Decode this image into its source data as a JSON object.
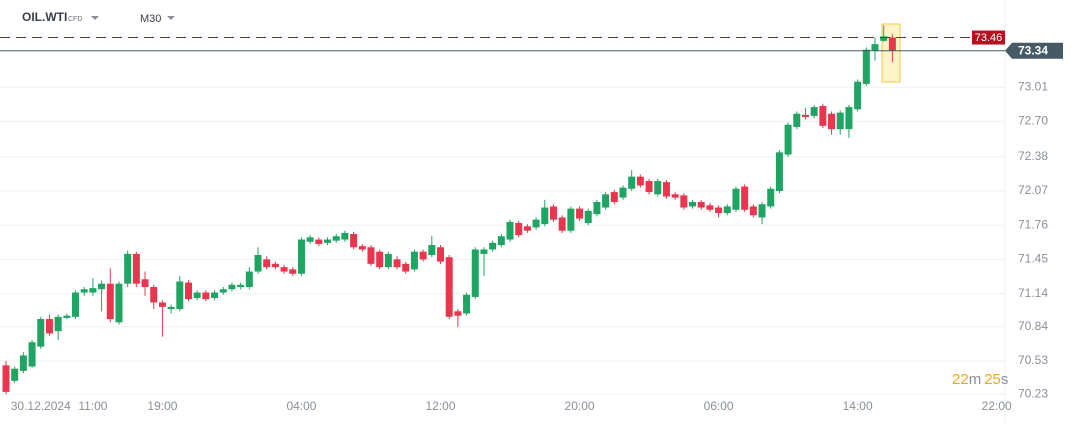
{
  "header": {
    "symbol": "OIL.WTI",
    "symbol_tag": "CFD",
    "timeframe": "M30"
  },
  "countdown": {
    "minutes": "22",
    "minutes_unit": "m",
    "seconds": "25",
    "seconds_unit": "s"
  },
  "chart_data": {
    "type": "candlestick",
    "up_color": "#1fa463",
    "down_color": "#e8364f",
    "grid": true,
    "ylim": [
      70.19,
      73.8
    ],
    "yticks": [
      73.01,
      {
        "value": 72.7,
        "label": "72.70"
      },
      72.38,
      72.07,
      71.76,
      71.45,
      71.14,
      70.84,
      70.53,
      70.23
    ],
    "price_lines": [
      {
        "value": 73.46,
        "color": "#b3121f",
        "dashed": true
      },
      {
        "value": 73.34,
        "color": "#455a64",
        "dashed": false
      }
    ],
    "categories": [
      null,
      null,
      null,
      null,
      "30.12.2024",
      null,
      null,
      null,
      null,
      null,
      "11:00",
      null,
      null,
      null,
      null,
      null,
      null,
      null,
      "19:00",
      null,
      null,
      null,
      null,
      null,
      null,
      null,
      null,
      null,
      null,
      null,
      null,
      null,
      null,
      null,
      "04:00",
      null,
      null,
      null,
      null,
      null,
      null,
      null,
      null,
      null,
      null,
      null,
      null,
      null,
      null,
      null,
      "12:00",
      null,
      null,
      null,
      null,
      null,
      null,
      null,
      null,
      null,
      null,
      null,
      null,
      null,
      null,
      null,
      "20:00",
      null,
      null,
      null,
      null,
      null,
      null,
      null,
      null,
      null,
      null,
      null,
      null,
      null,
      null,
      null,
      "06:00",
      null,
      null,
      null,
      null,
      null,
      null,
      null,
      null,
      null,
      null,
      null,
      null,
      null,
      null,
      null,
      "14:00",
      null,
      null,
      null,
      null,
      null,
      null,
      null,
      null,
      null,
      null,
      null,
      null,
      null,
      null,
      null,
      "22:00",
      null
    ],
    "open": [
      70.49,
      70.35,
      70.44,
      70.48,
      70.66,
      70.91,
      70.8,
      70.92,
      70.93,
      71.15,
      71.15,
      71.18,
      71.23,
      70.88,
      71.23,
      71.5,
      71.27,
      71.2,
      71.06,
      71.0,
      71.0,
      71.24,
      71.1,
      71.15,
      71.1,
      71.15,
      71.18,
      71.2,
      71.2,
      71.34,
      71.45,
      71.41,
      71.38,
      71.36,
      71.32,
      71.61,
      71.63,
      71.6,
      71.62,
      71.63,
      71.68,
      71.57,
      71.56,
      71.52,
      71.38,
      71.45,
      71.41,
      71.36,
      71.52,
      71.49,
      71.56,
      71.47,
      70.98,
      70.96,
      71.11,
      71.5,
      71.54,
      71.58,
      71.63,
      71.78,
      71.75,
      71.74,
      71.77,
      71.93,
      71.83,
      71.71,
      71.91,
      71.78,
      71.86,
      71.92,
      72.06,
      72.01,
      72.09,
      72.2,
      72.16,
      72.04,
      72.15,
      72.04,
      72.03,
      71.93,
      71.97,
      71.94,
      71.92,
      71.87,
      71.9,
      72.11,
      71.93,
      71.83,
      71.93,
      72.07,
      72.4,
      72.65,
      72.76,
      72.75,
      72.84,
      72.77,
      72.63,
      72.63,
      72.81,
      73.04,
      73.34,
      73.43,
      73.46,
      null,
      null,
      null,
      null,
      null,
      null,
      null,
      null,
      null,
      null,
      null,
      null,
      null
    ],
    "high": [
      70.53,
      70.48,
      70.61,
      70.72,
      70.93,
      70.95,
      70.95,
      70.96,
      71.17,
      71.2,
      71.28,
      71.26,
      71.37,
      71.25,
      71.53,
      71.52,
      71.34,
      71.22,
      71.08,
      71.04,
      71.3,
      71.26,
      71.17,
      71.17,
      71.17,
      71.2,
      71.24,
      71.24,
      71.38,
      71.56,
      71.48,
      71.43,
      71.4,
      71.38,
      71.65,
      71.67,
      71.65,
      71.65,
      71.68,
      71.71,
      71.7,
      71.59,
      71.58,
      71.54,
      71.52,
      71.48,
      71.43,
      71.54,
      71.54,
      71.66,
      71.58,
      71.49,
      71.0,
      71.15,
      71.56,
      71.56,
      71.62,
      71.68,
      71.81,
      71.8,
      71.77,
      71.83,
      71.99,
      71.95,
      71.85,
      71.93,
      71.93,
      71.91,
      71.99,
      72.06,
      72.08,
      72.12,
      72.26,
      72.22,
      72.18,
      72.18,
      72.17,
      72.06,
      72.05,
      71.99,
      71.99,
      71.96,
      71.94,
      71.95,
      72.11,
      72.13,
      71.95,
      71.97,
      72.11,
      72.44,
      72.69,
      72.79,
      72.82,
      72.85,
      72.86,
      72.79,
      72.8,
      72.85,
      73.08,
      73.37,
      73.46,
      73.57,
      73.49,
      null,
      null,
      null,
      null,
      null,
      null,
      null,
      null,
      null,
      null,
      null,
      null,
      null
    ],
    "low": [
      70.23,
      70.33,
      70.42,
      70.47,
      70.64,
      70.76,
      70.72,
      70.91,
      70.91,
      71.12,
      71.12,
      70.98,
      70.88,
      70.86,
      71.2,
      71.2,
      71.12,
      71.0,
      70.75,
      70.96,
      70.98,
      71.07,
      71.08,
      71.07,
      71.08,
      71.13,
      71.16,
      71.18,
      71.18,
      71.32,
      71.36,
      71.36,
      71.32,
      71.3,
      71.3,
      71.59,
      71.57,
      71.58,
      71.6,
      71.61,
      71.54,
      71.52,
      71.39,
      71.36,
      71.36,
      71.36,
      71.32,
      71.34,
      71.43,
      71.47,
      71.41,
      70.91,
      70.84,
      70.94,
      71.09,
      71.3,
      71.52,
      71.56,
      71.61,
      71.65,
      71.69,
      71.72,
      71.75,
      71.79,
      71.69,
      71.69,
      71.8,
      71.76,
      71.84,
      71.9,
      71.95,
      71.99,
      72.07,
      72.1,
      72.04,
      72.02,
      72.0,
      71.99,
      71.9,
      71.91,
      71.9,
      71.88,
      71.83,
      71.85,
      71.88,
      71.88,
      71.83,
      71.77,
      71.91,
      72.05,
      72.38,
      72.63,
      72.72,
      72.73,
      72.64,
      72.58,
      72.58,
      72.55,
      72.79,
      73.02,
      73.25,
      73.42,
      73.24,
      null,
      null,
      null,
      null,
      null,
      null,
      null,
      null,
      null,
      null,
      null,
      null,
      null
    ],
    "close": [
      70.25,
      70.46,
      70.58,
      70.7,
      70.91,
      70.78,
      70.93,
      70.94,
      71.15,
      71.18,
      71.19,
      71.23,
      70.91,
      71.23,
      71.5,
      71.23,
      71.2,
      71.06,
      71.02,
      71.02,
      71.25,
      71.09,
      71.15,
      71.09,
      71.15,
      71.18,
      71.22,
      71.22,
      71.34,
      71.49,
      71.38,
      71.38,
      71.34,
      71.32,
      71.63,
      71.65,
      71.59,
      71.63,
      71.66,
      71.69,
      71.56,
      71.54,
      71.41,
      71.38,
      71.5,
      71.38,
      71.34,
      71.52,
      71.45,
      71.58,
      71.43,
      70.93,
      70.94,
      71.13,
      71.54,
      71.54,
      71.6,
      71.66,
      71.79,
      71.67,
      71.71,
      71.81,
      71.92,
      71.81,
      71.71,
      71.91,
      71.82,
      71.89,
      71.97,
      72.04,
      71.97,
      72.1,
      72.2,
      72.12,
      72.06,
      72.16,
      72.02,
      72.01,
      71.92,
      71.97,
      71.92,
      71.9,
      71.87,
      71.93,
      72.09,
      71.9,
      71.85,
      71.95,
      72.09,
      72.42,
      72.67,
      72.77,
      72.74,
      72.83,
      72.66,
      72.63,
      72.78,
      72.83,
      73.06,
      73.35,
      73.4,
      73.47,
      73.34,
      null,
      null,
      null,
      null,
      null,
      null,
      null,
      null,
      null,
      null,
      null,
      null,
      null
    ]
  }
}
